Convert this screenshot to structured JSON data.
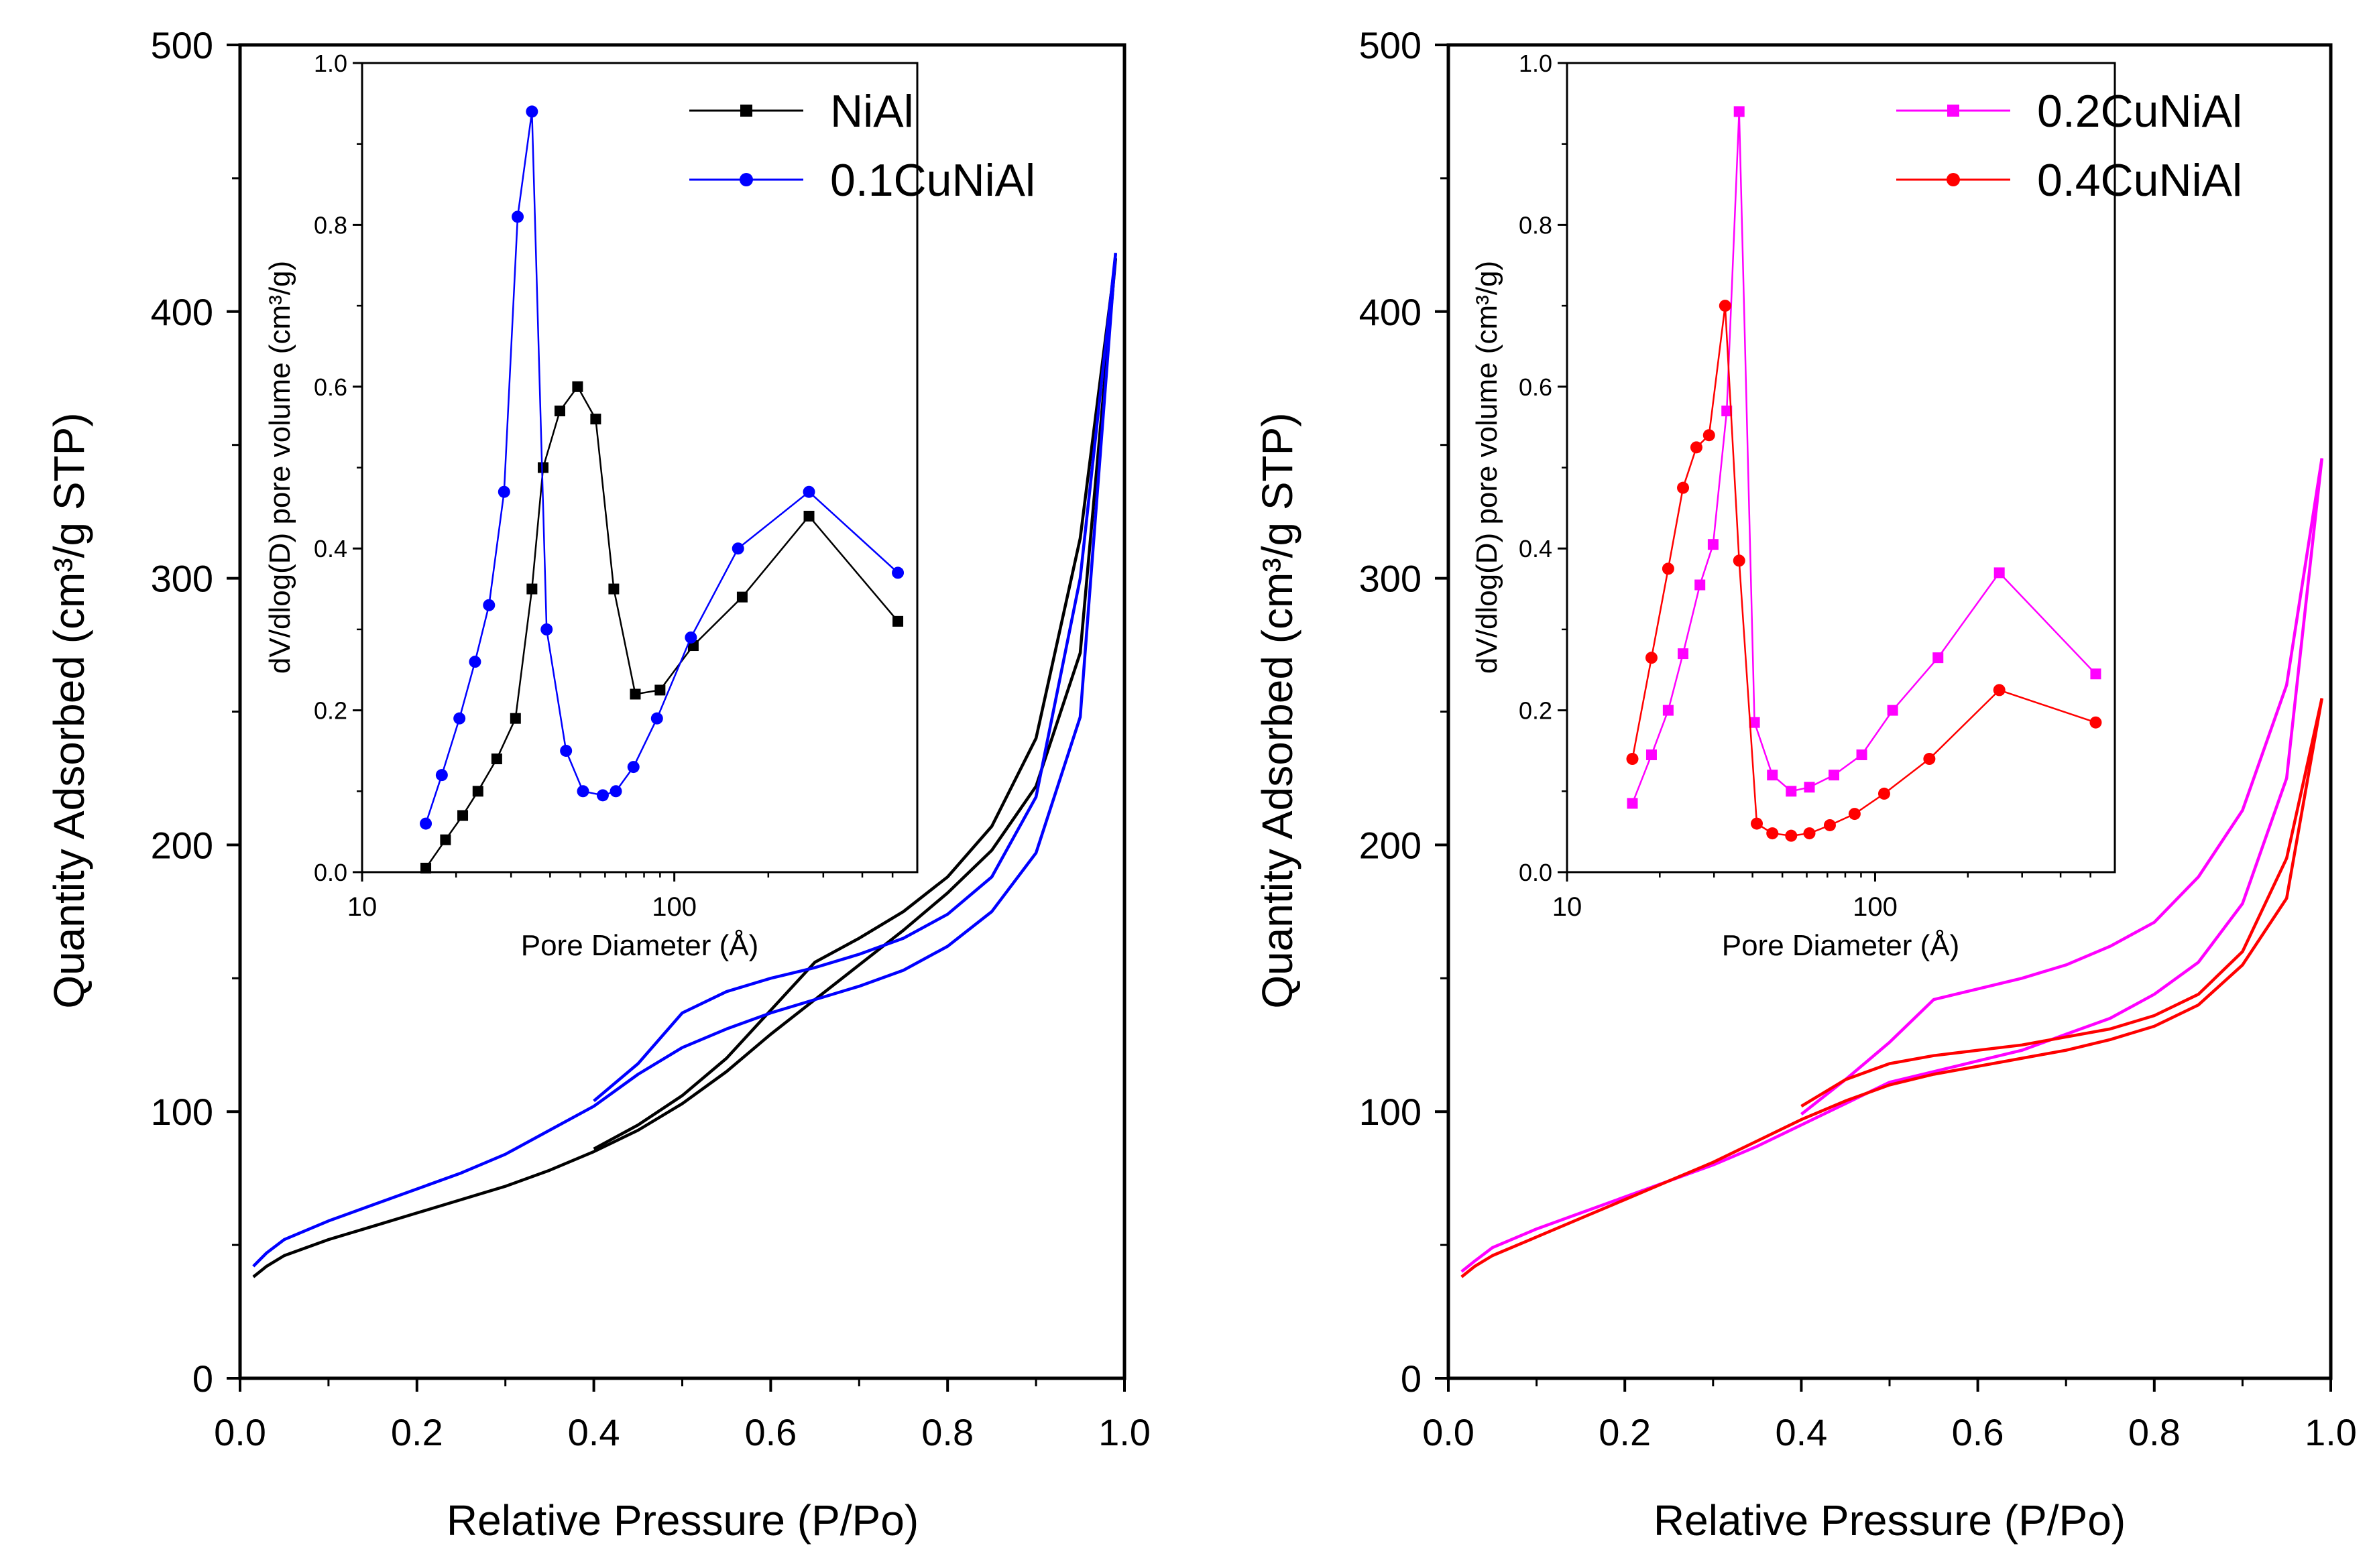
{
  "chart_data": [
    {
      "type": "line",
      "panel": "left",
      "xlabel": "Relative Pressure (P/Po)",
      "ylabel": "Quantity Adsorbed (cm³/g STP)",
      "xlim": [
        0.0,
        1.0
      ],
      "ylim": [
        0,
        500
      ],
      "xticks": [
        "0.0",
        "0.2",
        "0.4",
        "0.6",
        "0.8",
        "1.0"
      ],
      "yticks": [
        "0",
        "100",
        "200",
        "300",
        "400",
        "500"
      ],
      "legend": {
        "position": "top-right"
      },
      "series": [
        {
          "name": "NiAl",
          "color": "#000000",
          "marker": "square",
          "adsorption": {
            "x": [
              0.015,
              0.03,
              0.05,
              0.1,
              0.15,
              0.2,
              0.25,
              0.3,
              0.35,
              0.4,
              0.45,
              0.5,
              0.55,
              0.6,
              0.65,
              0.7,
              0.75,
              0.8,
              0.85,
              0.9,
              0.95,
              0.99
            ],
            "y": [
              38,
              42,
              46,
              52,
              57,
              62,
              67,
              72,
              78,
              85,
              93,
              103,
              115,
              129,
              142,
              155,
              168,
              182,
              198,
              222,
              272,
              420
            ]
          },
          "desorption": {
            "x": [
              0.99,
              0.95,
              0.9,
              0.85,
              0.8,
              0.75,
              0.7,
              0.65,
              0.6,
              0.55,
              0.5,
              0.45,
              0.4
            ],
            "y": [
              420,
              315,
              240,
              207,
              188,
              175,
              165,
              156,
              138,
              120,
              106,
              95,
              86
            ]
          }
        },
        {
          "name": "0.1CuNiAl",
          "color": "#0000ff",
          "marker": "circle",
          "adsorption": {
            "x": [
              0.015,
              0.03,
              0.05,
              0.1,
              0.15,
              0.2,
              0.25,
              0.3,
              0.35,
              0.4,
              0.45,
              0.5,
              0.55,
              0.6,
              0.65,
              0.7,
              0.75,
              0.8,
              0.85,
              0.9,
              0.95,
              0.99
            ],
            "y": [
              42,
              47,
              52,
              59,
              65,
              71,
              77,
              84,
              93,
              102,
              114,
              124,
              131,
              137,
              142,
              147,
              153,
              162,
              175,
              197,
              248,
              422
            ]
          },
          "desorption": {
            "x": [
              0.99,
              0.95,
              0.9,
              0.85,
              0.8,
              0.75,
              0.7,
              0.65,
              0.6,
              0.55,
              0.5,
              0.45,
              0.4
            ],
            "y": [
              422,
              300,
              218,
              188,
              174,
              165,
              159,
              154,
              150,
              145,
              137,
              118,
              104
            ]
          }
        }
      ],
      "inset": {
        "type": "line",
        "xlabel": "Pore Diameter (Å)",
        "ylabel": "dV/dlog(D) pore volume (cm³/g)",
        "xscale": "log",
        "xlim": [
          10,
          600
        ],
        "ylim": [
          0,
          1.0
        ],
        "xticks": [
          "10",
          "100"
        ],
        "yticks": [
          "0.0",
          "0.2",
          "0.4",
          "0.6",
          "0.8",
          "1.0"
        ],
        "series": [
          {
            "name": "NiAl",
            "color": "#000000",
            "marker": "square",
            "x": [
              16,
              18.5,
              21,
              23.5,
              27,
              31,
              35,
              38,
              43,
              49,
              56,
              64,
              75,
              90,
              115,
              165,
              270,
              520
            ],
            "y": [
              0.005,
              0.04,
              0.07,
              0.1,
              0.14,
              0.19,
              0.35,
              0.5,
              0.57,
              0.6,
              0.56,
              0.35,
              0.22,
              0.225,
              0.28,
              0.34,
              0.44,
              0.31
            ]
          },
          {
            "name": "0.1CuNiAl",
            "color": "#0000ff",
            "marker": "circle",
            "x": [
              16,
              18,
              20.5,
              23,
              25.5,
              28.5,
              31.5,
              35,
              39,
              45,
              51,
              59,
              65,
              74,
              88,
              113,
              160,
              270,
              520
            ],
            "y": [
              0.06,
              0.12,
              0.19,
              0.26,
              0.33,
              0.47,
              0.81,
              0.94,
              0.3,
              0.15,
              0.1,
              0.095,
              0.1,
              0.13,
              0.19,
              0.29,
              0.4,
              0.47,
              0.37
            ]
          }
        ]
      }
    },
    {
      "type": "line",
      "panel": "right",
      "xlabel": "Relative Pressure (P/Po)",
      "ylabel": "Quantity Adsorbed (cm³/g STP)",
      "xlim": [
        0.0,
        1.0
      ],
      "ylim": [
        0,
        500
      ],
      "xticks": [
        "0.0",
        "0.2",
        "0.4",
        "0.6",
        "0.8",
        "1.0"
      ],
      "yticks": [
        "0",
        "100",
        "200",
        "300",
        "400",
        "500"
      ],
      "legend": {
        "position": "top-right"
      },
      "series": [
        {
          "name": "0.2CuNiAl",
          "color": "#ff00ff",
          "marker": "square",
          "adsorption": {
            "x": [
              0.015,
              0.03,
              0.05,
              0.1,
              0.15,
              0.2,
              0.25,
              0.3,
              0.35,
              0.4,
              0.45,
              0.5,
              0.55,
              0.6,
              0.65,
              0.7,
              0.75,
              0.8,
              0.85,
              0.9,
              0.95,
              0.99
            ],
            "y": [
              40,
              44,
              49,
              56,
              62,
              68,
              74,
              80,
              87,
              95,
              103,
              111,
              115,
              119,
              123,
              129,
              135,
              144,
              156,
              178,
              225,
              345
            ]
          },
          "desorption": {
            "x": [
              0.99,
              0.95,
              0.9,
              0.85,
              0.8,
              0.75,
              0.7,
              0.65,
              0.6,
              0.55,
              0.5,
              0.45,
              0.4
            ],
            "y": [
              345,
              260,
              213,
              188,
              171,
              162,
              155,
              150,
              146,
              142,
              126,
              112,
              99
            ]
          }
        },
        {
          "name": "0.4CuNiAl",
          "color": "#ff0000",
          "marker": "circle",
          "adsorption": {
            "x": [
              0.015,
              0.03,
              0.05,
              0.1,
              0.15,
              0.2,
              0.25,
              0.3,
              0.35,
              0.4,
              0.45,
              0.5,
              0.55,
              0.6,
              0.65,
              0.7,
              0.75,
              0.8,
              0.85,
              0.9,
              0.95,
              0.99
            ],
            "y": [
              38,
              42,
              46,
              53,
              60,
              67,
              74,
              81,
              89,
              97,
              104,
              110,
              114,
              117,
              120,
              123,
              127,
              132,
              140,
              155,
              180,
              255
            ]
          },
          "desorption": {
            "x": [
              0.99,
              0.95,
              0.9,
              0.85,
              0.8,
              0.75,
              0.7,
              0.65,
              0.6,
              0.55,
              0.5,
              0.45,
              0.4
            ],
            "y": [
              255,
              195,
              160,
              144,
              136,
              131,
              128,
              125,
              123,
              121,
              118,
              112,
              102
            ]
          }
        }
      ],
      "inset": {
        "type": "line",
        "xlabel": "Pore Diameter (Å)",
        "ylabel": "dV/dlog(D) pore volume (cm³/g)",
        "xscale": "log",
        "xlim": [
          10,
          600
        ],
        "ylim": [
          0,
          1.0
        ],
        "xticks": [
          "10",
          "100"
        ],
        "yticks": [
          "0.0",
          "0.2",
          "0.4",
          "0.6",
          "0.8",
          "1.0"
        ],
        "series": [
          {
            "name": "0.2CuNiAl",
            "color": "#ff00ff",
            "marker": "square",
            "x": [
              16.3,
              18.8,
              21.3,
              23.8,
              27,
              29.8,
              33,
              36.2,
              40.6,
              46.4,
              53.4,
              61.2,
              73.5,
              90.5,
              114,
              160,
              253,
              520
            ],
            "y": [
              0.085,
              0.145,
              0.2,
              0.27,
              0.355,
              0.405,
              0.57,
              0.94,
              0.185,
              0.12,
              0.1,
              0.105,
              0.12,
              0.145,
              0.2,
              0.265,
              0.37,
              0.245
            ]
          },
          {
            "name": "0.4CuNiAl",
            "color": "#ff0000",
            "marker": "circle",
            "x": [
              16.3,
              18.8,
              21.3,
              23.8,
              26.3,
              28.9,
              32.6,
              36.2,
              41.3,
              46.4,
              53.4,
              61.2,
              71.3,
              85.8,
              107,
              150,
              253,
              520
            ],
            "y": [
              0.14,
              0.265,
              0.375,
              0.475,
              0.525,
              0.54,
              0.7,
              0.385,
              0.06,
              0.048,
              0.045,
              0.048,
              0.058,
              0.072,
              0.097,
              0.14,
              0.225,
              0.185
            ]
          }
        ]
      }
    }
  ]
}
